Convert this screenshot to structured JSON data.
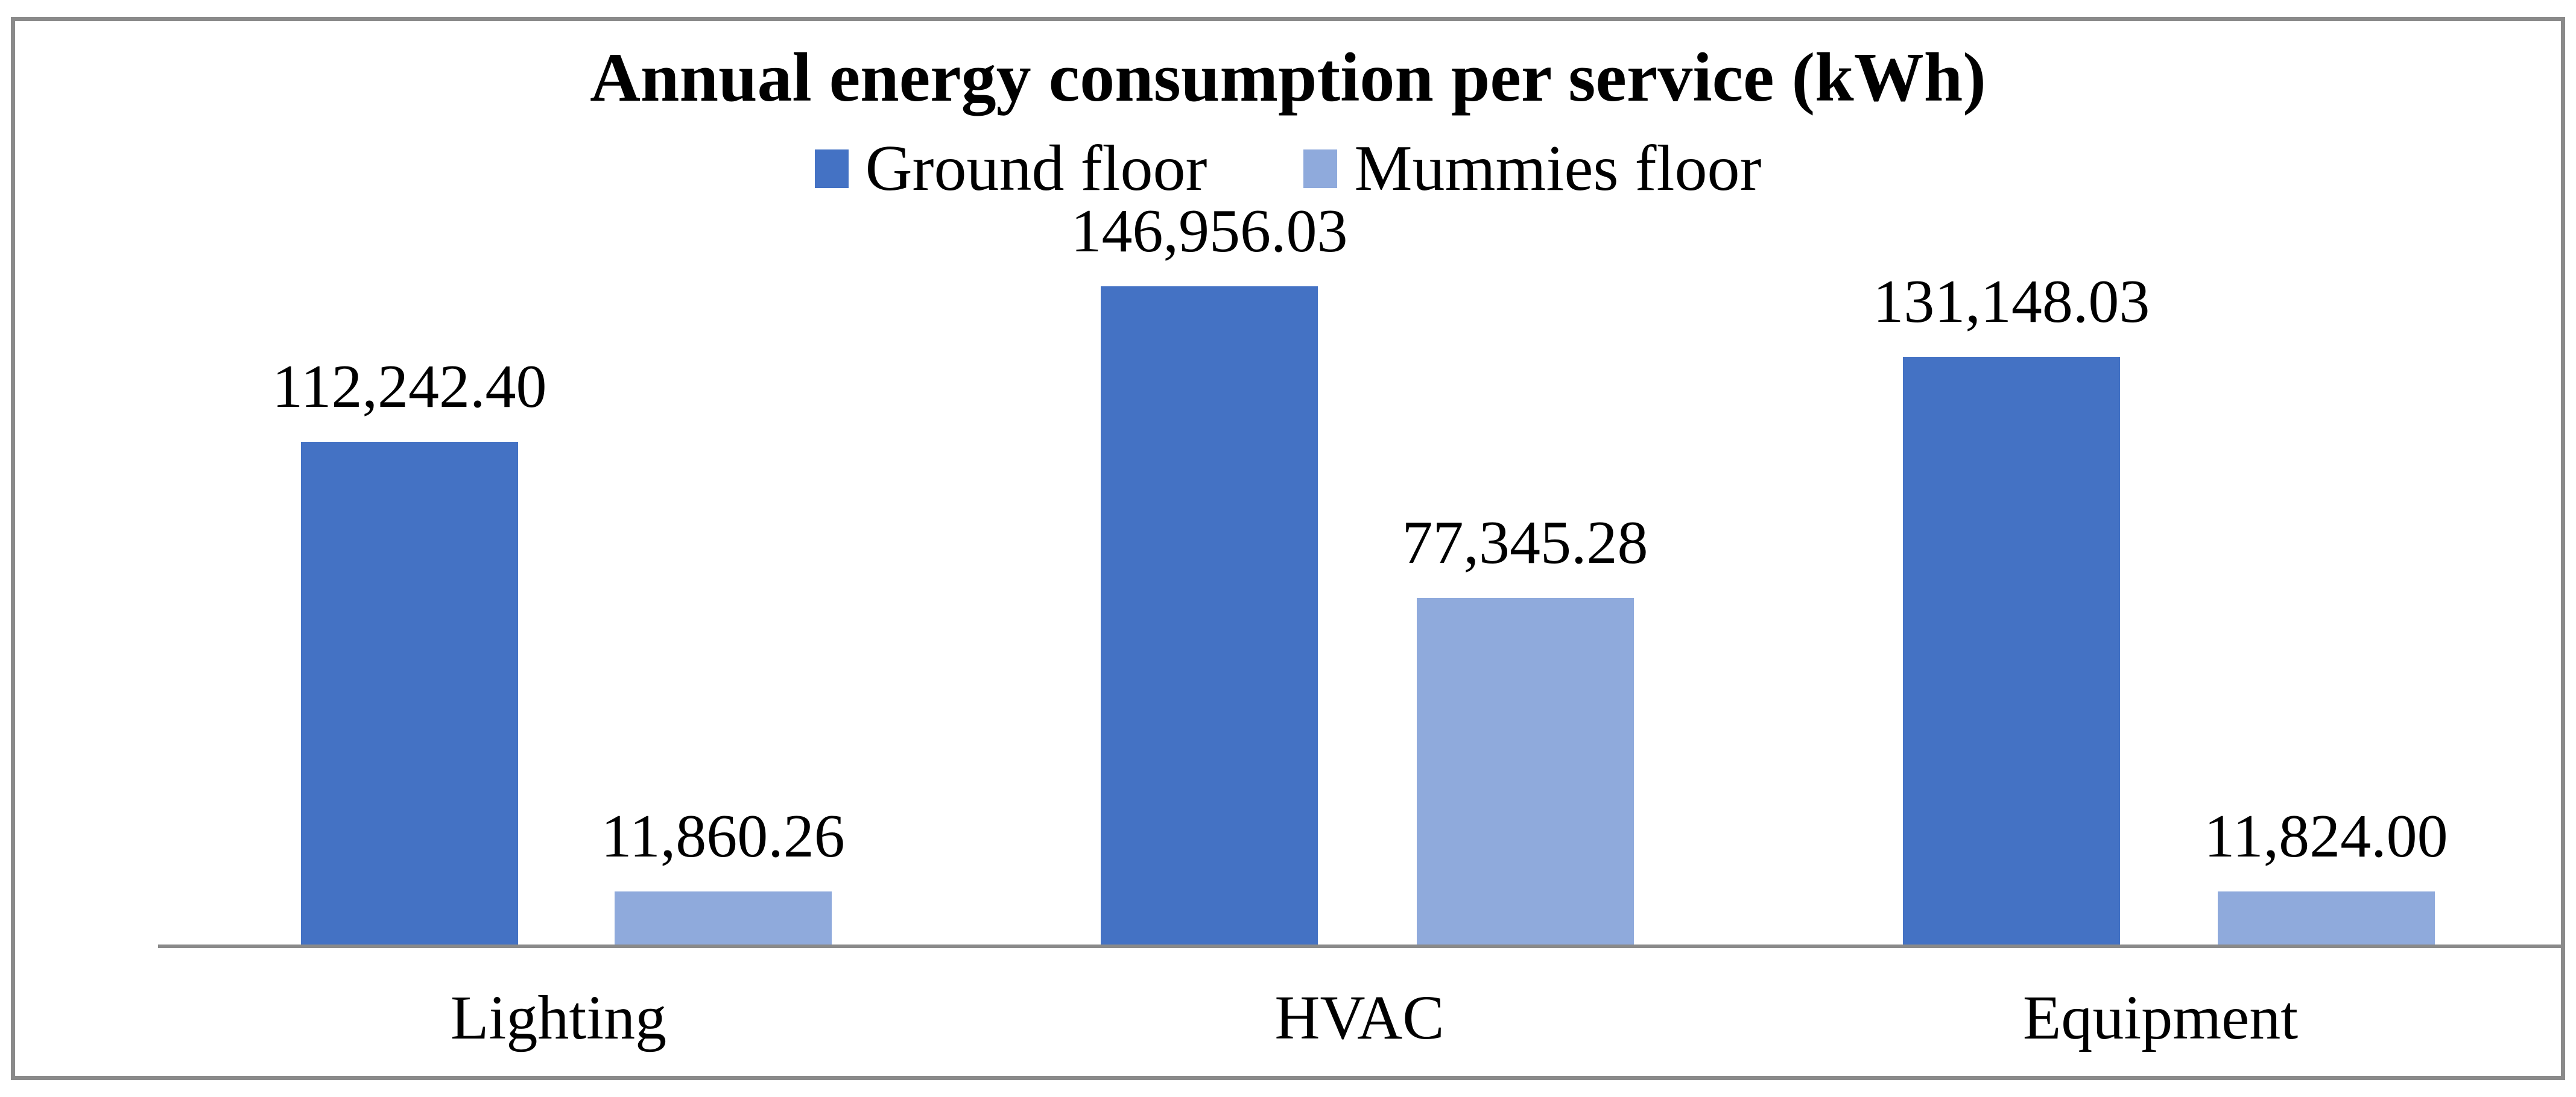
{
  "figure": {
    "background": "#ffffff",
    "border_color": "#8a8a8a",
    "axis_line_color": "#8a8a8a",
    "text_color": "#000000"
  },
  "chart_data": {
    "type": "bar",
    "title": "Annual energy consumption per service (kWh)",
    "xlabel": "",
    "ylabel": "",
    "categories": [
      "Lighting",
      "HVAC",
      "Equipment"
    ],
    "series": [
      {
        "name": "Ground floor",
        "color": "#4472C4",
        "values": [
          112242.4,
          146956.03,
          131148.03
        ],
        "labels": [
          "112,242.40",
          "146,956.03",
          "131,148.03"
        ]
      },
      {
        "name": "Mummies floor",
        "color": "#8FAADC",
        "values": [
          11860.26,
          77345.28,
          11824.0
        ],
        "labels": [
          "11,860.26",
          "77,345.28",
          "11,824.00"
        ]
      }
    ],
    "ylim": [
      0,
      160000
    ],
    "y_axis_visible": false,
    "gridlines": false,
    "legend_position": "top",
    "data_labels": true
  }
}
